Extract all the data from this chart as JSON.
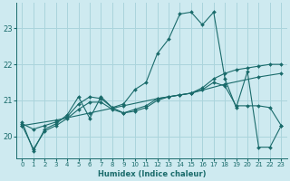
{
  "xlabel": "Humidex (Indice chaleur)",
  "bg_color": "#ceeaf0",
  "grid_color": "#aad4dc",
  "line_color": "#1a6b6b",
  "xlim": [
    -0.5,
    23.5
  ],
  "ylim": [
    19.4,
    23.7
  ],
  "yticks": [
    20,
    21,
    22,
    23
  ],
  "xticks": [
    0,
    1,
    2,
    3,
    4,
    5,
    6,
    7,
    8,
    9,
    10,
    11,
    12,
    13,
    14,
    15,
    16,
    17,
    18,
    19,
    20,
    21,
    22,
    23
  ],
  "series": [
    {
      "x": [
        0,
        1,
        2,
        3,
        4,
        5,
        6,
        7,
        8,
        9,
        10,
        11,
        12,
        13,
        14,
        15,
        16,
        17,
        18,
        19,
        20,
        21,
        22,
        23
      ],
      "y": [
        20.4,
        19.6,
        20.2,
        20.35,
        20.6,
        21.1,
        20.5,
        21.1,
        20.8,
        20.9,
        21.3,
        21.5,
        22.3,
        22.7,
        23.4,
        23.45,
        23.1,
        23.45,
        21.6,
        20.8,
        21.8,
        19.7,
        19.7,
        20.3
      ]
    },
    {
      "x": [
        0,
        3,
        6,
        9,
        12,
        15,
        18,
        21,
        23
      ],
      "y": [
        20.3,
        20.45,
        20.65,
        20.85,
        21.05,
        21.2,
        21.45,
        21.65,
        21.75
      ]
    },
    {
      "x": [
        0,
        1,
        2,
        3,
        4,
        5,
        6,
        7,
        8,
        9,
        10,
        11,
        12,
        13,
        14,
        15,
        16,
        17,
        18,
        19,
        20,
        21,
        22,
        23
      ],
      "y": [
        20.35,
        20.2,
        20.3,
        20.4,
        20.55,
        20.9,
        21.1,
        21.05,
        20.8,
        20.65,
        20.75,
        20.85,
        21.05,
        21.1,
        21.15,
        21.2,
        21.3,
        21.5,
        21.4,
        20.85,
        20.85,
        20.85,
        20.8,
        20.3
      ]
    },
    {
      "x": [
        0,
        1,
        2,
        3,
        4,
        5,
        6,
        7,
        8,
        9,
        10,
        11,
        12,
        13,
        14,
        15,
        16,
        17,
        18,
        19,
        20,
        21,
        22,
        23
      ],
      "y": [
        20.3,
        19.65,
        20.15,
        20.3,
        20.5,
        20.75,
        20.95,
        20.95,
        20.75,
        20.65,
        20.7,
        20.8,
        21.0,
        21.1,
        21.15,
        21.2,
        21.35,
        21.6,
        21.75,
        21.85,
        21.9,
        21.95,
        22.0,
        22.0
      ]
    }
  ]
}
